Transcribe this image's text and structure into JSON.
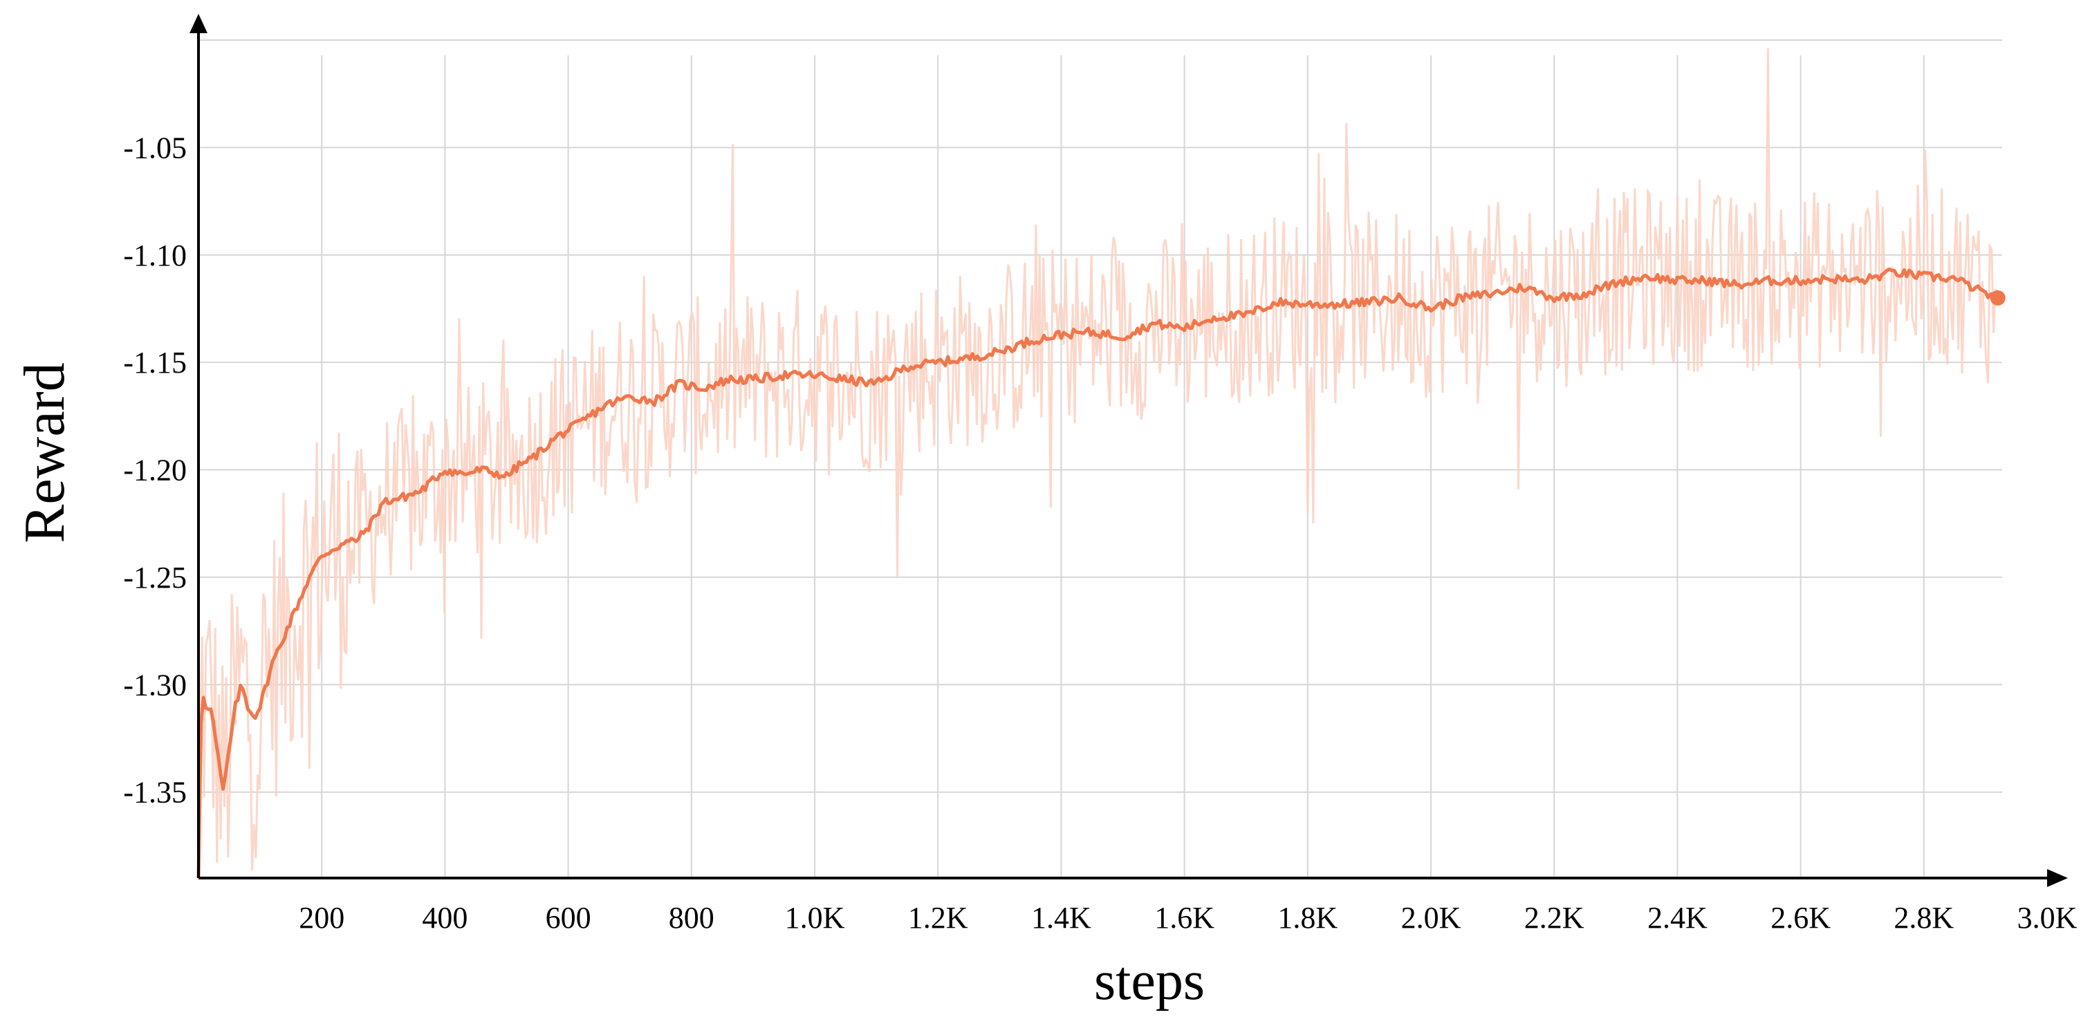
{
  "chart_data": {
    "type": "line",
    "xlabel": "steps",
    "ylabel": "Reward",
    "xlim": [
      0,
      3000
    ],
    "ylim": [
      -1.39,
      -1.0
    ],
    "x_ticks": [
      200,
      400,
      600,
      800,
      1000,
      1200,
      1400,
      1600,
      1800,
      2000,
      2200,
      2400,
      2600,
      2800,
      3000
    ],
    "x_tick_labels": [
      "200",
      "400",
      "600",
      "800",
      "1.0K",
      "1.2K",
      "1.4K",
      "1.6K",
      "1.8K",
      "2.0K",
      "2.2K",
      "2.4K",
      "2.6K",
      "2.8K",
      "3.0K"
    ],
    "y_ticks": [
      -1.05,
      -1.1,
      -1.15,
      -1.2,
      -1.25,
      -1.3,
      -1.35
    ],
    "y_tick_labels": [
      "-1.05",
      "-1.10",
      "-1.15",
      "-1.20",
      "-1.25",
      "-1.30",
      "-1.35"
    ],
    "grid": true,
    "colors": {
      "smoothed": "#f0774c",
      "raw": "#fbd3c4",
      "grid": "#d6d6d6",
      "axis": "#000000"
    },
    "series": [
      {
        "role": "smoothed",
        "x": [
          0,
          5,
          10,
          20,
          30,
          40,
          50,
          60,
          70,
          80,
          90,
          100,
          120,
          150,
          180,
          200,
          230,
          260,
          280,
          300,
          330,
          360,
          400,
          430,
          460,
          500,
          520,
          540,
          580,
          620,
          660,
          700,
          740,
          780,
          820,
          860,
          900,
          950,
          1000,
          1050,
          1100,
          1150,
          1200,
          1250,
          1300,
          1350,
          1400,
          1450,
          1500,
          1550,
          1600,
          1650,
          1700,
          1750,
          1800,
          1850,
          1900,
          1950,
          2000,
          2050,
          2100,
          2150,
          2200,
          2250,
          2300,
          2350,
          2400,
          2450,
          2500,
          2550,
          2600,
          2650,
          2700,
          2750,
          2800,
          2850,
          2900,
          2920
        ],
        "y": [
          -1.39,
          -1.3,
          -1.31,
          -1.31,
          -1.33,
          -1.35,
          -1.33,
          -1.31,
          -1.3,
          -1.31,
          -1.315,
          -1.31,
          -1.29,
          -1.27,
          -1.25,
          -1.24,
          -1.235,
          -1.232,
          -1.225,
          -1.215,
          -1.213,
          -1.21,
          -1.2,
          -1.202,
          -1.2,
          -1.203,
          -1.198,
          -1.195,
          -1.185,
          -1.178,
          -1.17,
          -1.166,
          -1.168,
          -1.16,
          -1.162,
          -1.158,
          -1.158,
          -1.156,
          -1.156,
          -1.158,
          -1.16,
          -1.152,
          -1.15,
          -1.148,
          -1.145,
          -1.14,
          -1.137,
          -1.136,
          -1.138,
          -1.132,
          -1.134,
          -1.129,
          -1.128,
          -1.122,
          -1.123,
          -1.123,
          -1.122,
          -1.12,
          -1.125,
          -1.12,
          -1.118,
          -1.115,
          -1.12,
          -1.118,
          -1.113,
          -1.11,
          -1.112,
          -1.112,
          -1.114,
          -1.112,
          -1.112,
          -1.111,
          -1.112,
          -1.108,
          -1.11,
          -1.111,
          -1.118,
          -1.12
        ]
      }
    ]
  }
}
